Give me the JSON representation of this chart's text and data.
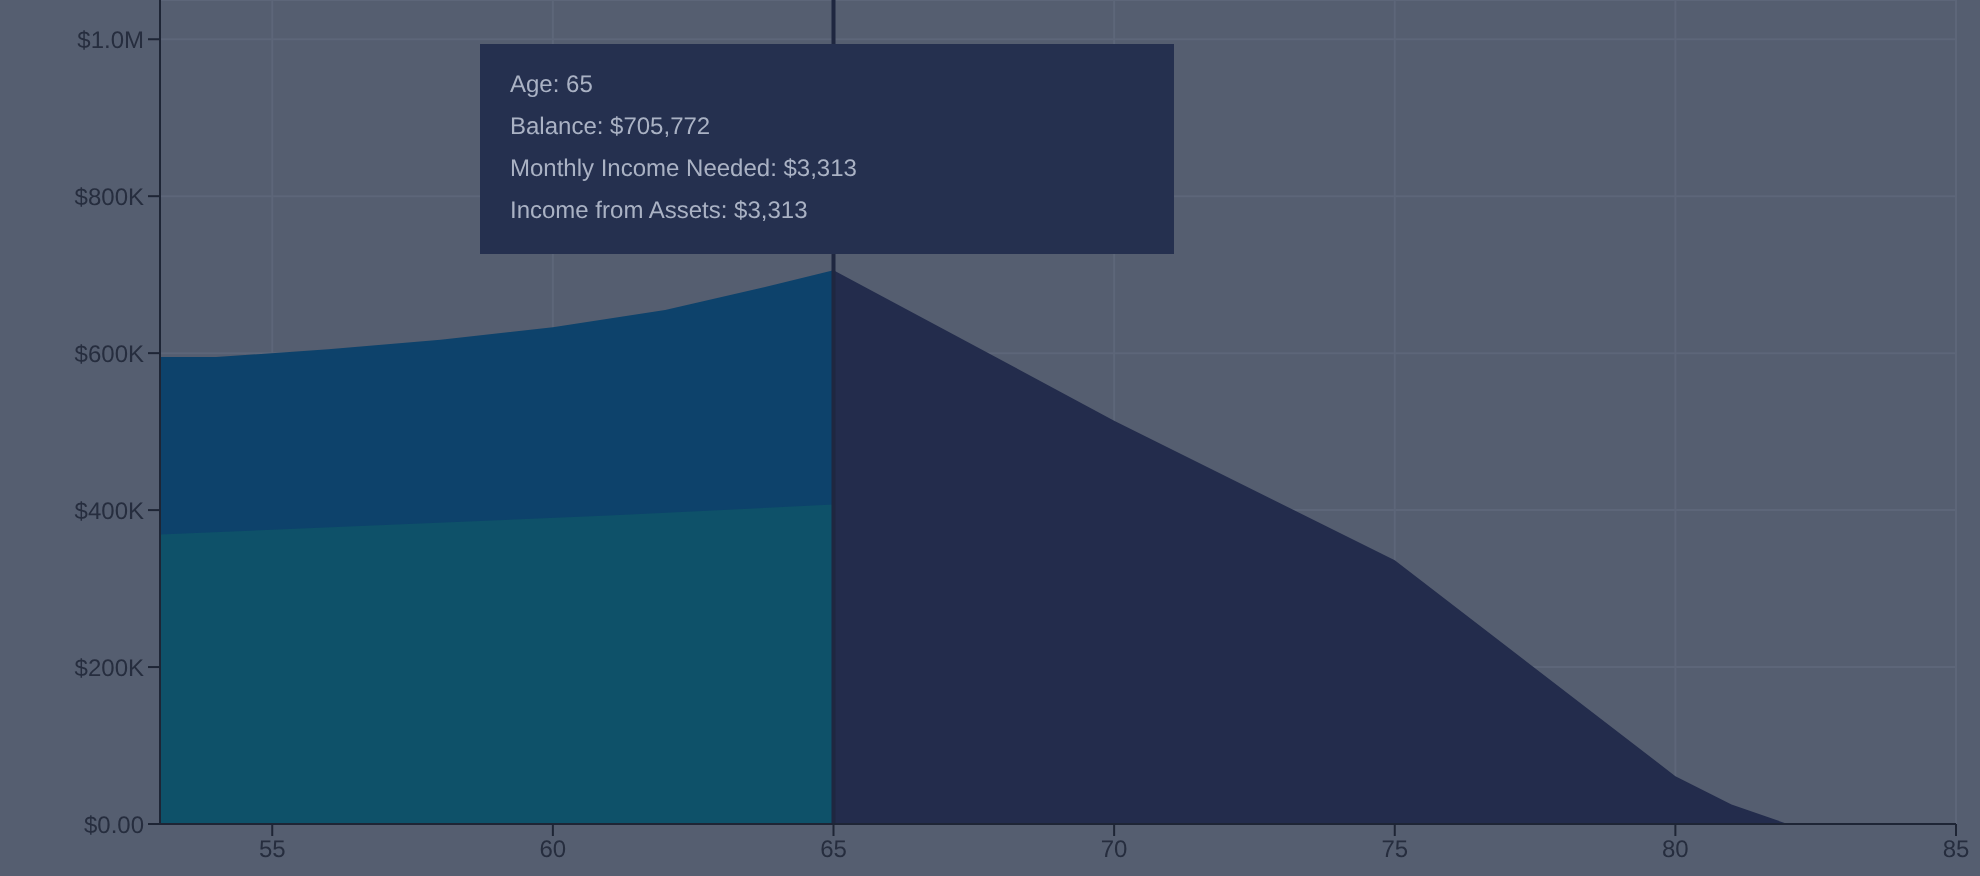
{
  "chart_data": {
    "type": "area",
    "xlim": [
      53,
      85
    ],
    "xticks": [
      55,
      60,
      65,
      70,
      75,
      80,
      85
    ],
    "ylim": [
      0,
      1050000
    ],
    "yticks": [
      {
        "value": 0,
        "label": "$0.00"
      },
      {
        "value": 200000,
        "label": "$200K"
      },
      {
        "value": 400000,
        "label": "$400K"
      },
      {
        "value": 600000,
        "label": "$600K"
      },
      {
        "value": 800000,
        "label": "$800K"
      },
      {
        "value": 1000000,
        "label": "$1.0M"
      }
    ],
    "grid": true,
    "legend": false,
    "series": [
      {
        "color": "#0d426b",
        "x": [
          53,
          54,
          56,
          58,
          60,
          62,
          64,
          65
        ],
        "values": [
          595000,
          595000,
          605000,
          617000,
          633000,
          655000,
          688000,
          705772
        ]
      },
      {
        "color": "#0e5169",
        "x": [
          53,
          57,
          61,
          65
        ],
        "values": [
          369000,
          381000,
          393000,
          407000
        ]
      },
      {
        "color": "#232c4c",
        "x": [
          65,
          70,
          75,
          80,
          81,
          82
        ],
        "values": [
          705772,
          514000,
          336000,
          61000,
          25000,
          0
        ]
      }
    ],
    "ref_lines": [
      {
        "axis": "x",
        "value": 65,
        "color": "#1f2740"
      }
    ],
    "annotations": [
      "Age: 65",
      "Balance: $705,772",
      "Monthly Income Needed: $3,313",
      "Income from Assets: $3,313"
    ]
  }
}
